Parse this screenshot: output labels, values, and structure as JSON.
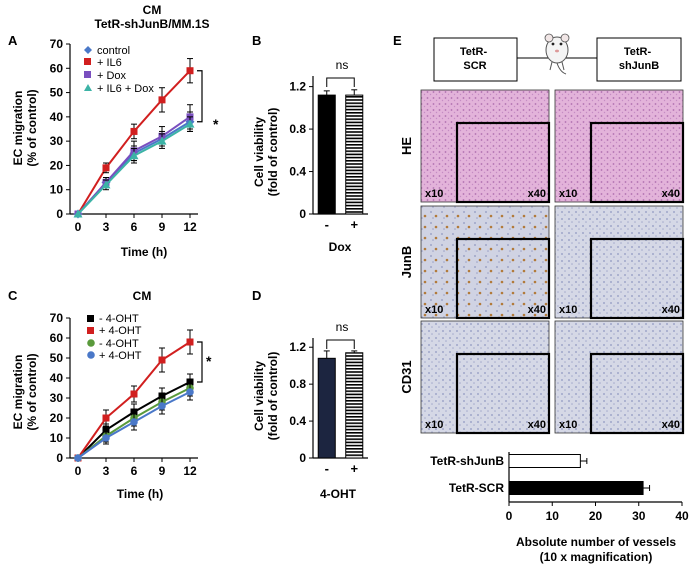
{
  "figure": {
    "header_line1": "CM",
    "header_line2": "TetR-shJunB/MM.1S"
  },
  "colors": {
    "blue": "#4a78c8",
    "red": "#d11f1f",
    "purple": "#7a4fbf",
    "teal": "#3cb3a6",
    "black": "#000000",
    "green": "#5a9a3c",
    "bar_light": "#ffffff",
    "he_stain": "#dca6d2",
    "ihc_stain": "#c9cde0"
  },
  "chart_data": [
    {
      "panel": "A",
      "type": "line",
      "title": "",
      "xlabel": "Time (h)",
      "ylabel_line1": "EC migration",
      "ylabel_line2": "(% of control)",
      "x": [
        0,
        3,
        6,
        9,
        12
      ],
      "xticks": [
        "0",
        "3",
        "6",
        "9",
        "12"
      ],
      "yticks": [
        "0",
        "10",
        "20",
        "30",
        "40",
        "50",
        "60",
        "70"
      ],
      "ylim": [
        0,
        70
      ],
      "series": [
        {
          "name": "control",
          "marker": "diamond",
          "color": "#4a78c8",
          "values": [
            0,
            13,
            25,
            31,
            38
          ],
          "err": [
            0,
            2,
            3,
            3,
            4
          ]
        },
        {
          "name": "+ IL6",
          "marker": "square",
          "color": "#d11f1f",
          "values": [
            0,
            19,
            34,
            47,
            59
          ],
          "err": [
            0,
            2,
            3,
            5,
            5
          ]
        },
        {
          "name": "+ Dox",
          "marker": "square",
          "color": "#7a4fbf",
          "values": [
            0,
            13,
            26,
            32,
            40
          ],
          "err": [
            0,
            2,
            4,
            4,
            5
          ]
        },
        {
          "name": "+ IL6 + Dox",
          "marker": "triangle",
          "color": "#3cb3a6",
          "values": [
            0,
            12,
            24,
            30,
            37
          ],
          "err": [
            0,
            2,
            3,
            3,
            3
          ]
        }
      ],
      "significance": "*"
    },
    {
      "panel": "B",
      "type": "bar",
      "xlabel": "Dox",
      "ylabel_line1": "Cell viability",
      "ylabel_line2": "(fold of control)",
      "categories": [
        "-",
        "+"
      ],
      "values": [
        1.12,
        1.12
      ],
      "err": [
        0.04,
        0.05
      ],
      "yticks": [
        "0",
        "0.4",
        "0.8",
        "1.2"
      ],
      "ylim": [
        0,
        1.3
      ],
      "significance": "ns"
    },
    {
      "panel": "C",
      "type": "line",
      "title": "CM",
      "xlabel": "Time (h)",
      "ylabel_line1": "EC migration",
      "ylabel_line2": "(% of control)",
      "x": [
        0,
        3,
        6,
        9,
        12
      ],
      "xticks": [
        "0",
        "3",
        "6",
        "9",
        "12"
      ],
      "yticks": [
        "0",
        "10",
        "20",
        "30",
        "40",
        "50",
        "60",
        "70"
      ],
      "ylim": [
        0,
        70
      ],
      "series": [
        {
          "name": "- 4-OHT",
          "marker": "square",
          "color": "#000000",
          "values": [
            0,
            14,
            23,
            31,
            38
          ],
          "err": [
            0,
            3,
            4,
            4,
            4
          ]
        },
        {
          "name": "+ 4-OHT",
          "marker": "square",
          "color": "#d11f1f",
          "values": [
            0,
            20,
            32,
            49,
            58
          ],
          "err": [
            0,
            4,
            4,
            6,
            6
          ]
        },
        {
          "name": "- 4-OHT",
          "marker": "circle",
          "color": "#5a9a3c",
          "values": [
            0,
            11,
            20,
            28,
            35
          ],
          "err": [
            0,
            3,
            4,
            4,
            4
          ]
        },
        {
          "name": "+ 4-OHT",
          "marker": "circle",
          "color": "#4a78c8",
          "values": [
            0,
            10,
            18,
            26,
            33
          ],
          "err": [
            0,
            3,
            4,
            4,
            4
          ]
        }
      ],
      "significance": "*"
    },
    {
      "panel": "D",
      "type": "bar",
      "xlabel": "4-OHT",
      "ylabel_line1": "Cell viability",
      "ylabel_line2": "(fold of control)",
      "categories": [
        "-",
        "+"
      ],
      "values": [
        1.08,
        1.14
      ],
      "err": [
        0.08,
        0.02
      ],
      "yticks": [
        "0",
        "0.4",
        "0.8",
        "1.2"
      ],
      "ylim": [
        0,
        1.3
      ],
      "significance": "ns"
    },
    {
      "panel": "E",
      "type": "bar",
      "orientation": "horizontal",
      "xlabel_line1": "Absolute number of vessels",
      "xlabel_line2": "(10 x magnification)",
      "categories": [
        "TetR-shJunB",
        "TetR-SCR"
      ],
      "values": [
        16.5,
        31
      ],
      "err": [
        1.5,
        1.5
      ],
      "xticks": [
        "0",
        "10",
        "20",
        "30",
        "40"
      ],
      "xlim": [
        0,
        40
      ]
    }
  ],
  "panel_e": {
    "box_left": "TetR-\nSCR",
    "box_right": "TetR-\nshJunB",
    "rows": [
      "HE",
      "JunB",
      "CD31"
    ],
    "mag_low": "x10",
    "mag_high": "x40"
  },
  "panel_letters": [
    "A",
    "B",
    "C",
    "D",
    "E"
  ]
}
